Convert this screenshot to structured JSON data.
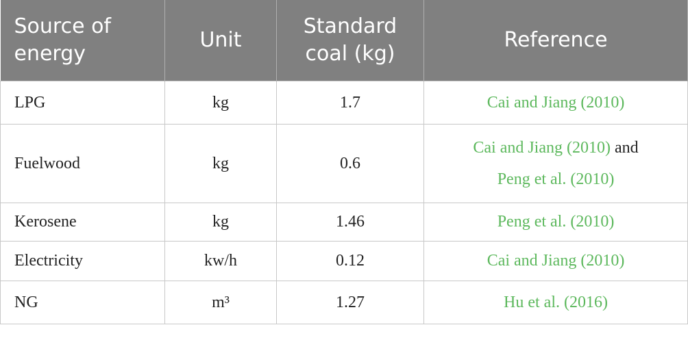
{
  "table": {
    "header": [
      "Source of energy",
      "Unit",
      "Standard coal (kg)",
      "Reference"
    ],
    "rows": [
      {
        "source": "LPG",
        "unit": "kg",
        "coal": "1.7",
        "references": [
          "Cai and Jiang (2010)"
        ]
      },
      {
        "source": "Fuelwood",
        "unit": "kg",
        "coal": "0.6",
        "references": [
          "Cai and Jiang (2010)",
          "Peng et al. (2010)"
        ],
        "joiner": "and"
      },
      {
        "source": "Kerosene",
        "unit": "kg",
        "coal": "1.46",
        "references": [
          "Peng et al. (2010)"
        ]
      },
      {
        "source": "Electricity",
        "unit": "kw/h",
        "coal": "0.12",
        "references": [
          "Cai and Jiang (2010)"
        ]
      },
      {
        "source": "NG",
        "unit": "m³",
        "coal": "1.27",
        "references": [
          "Hu et al. (2016)"
        ]
      }
    ]
  }
}
